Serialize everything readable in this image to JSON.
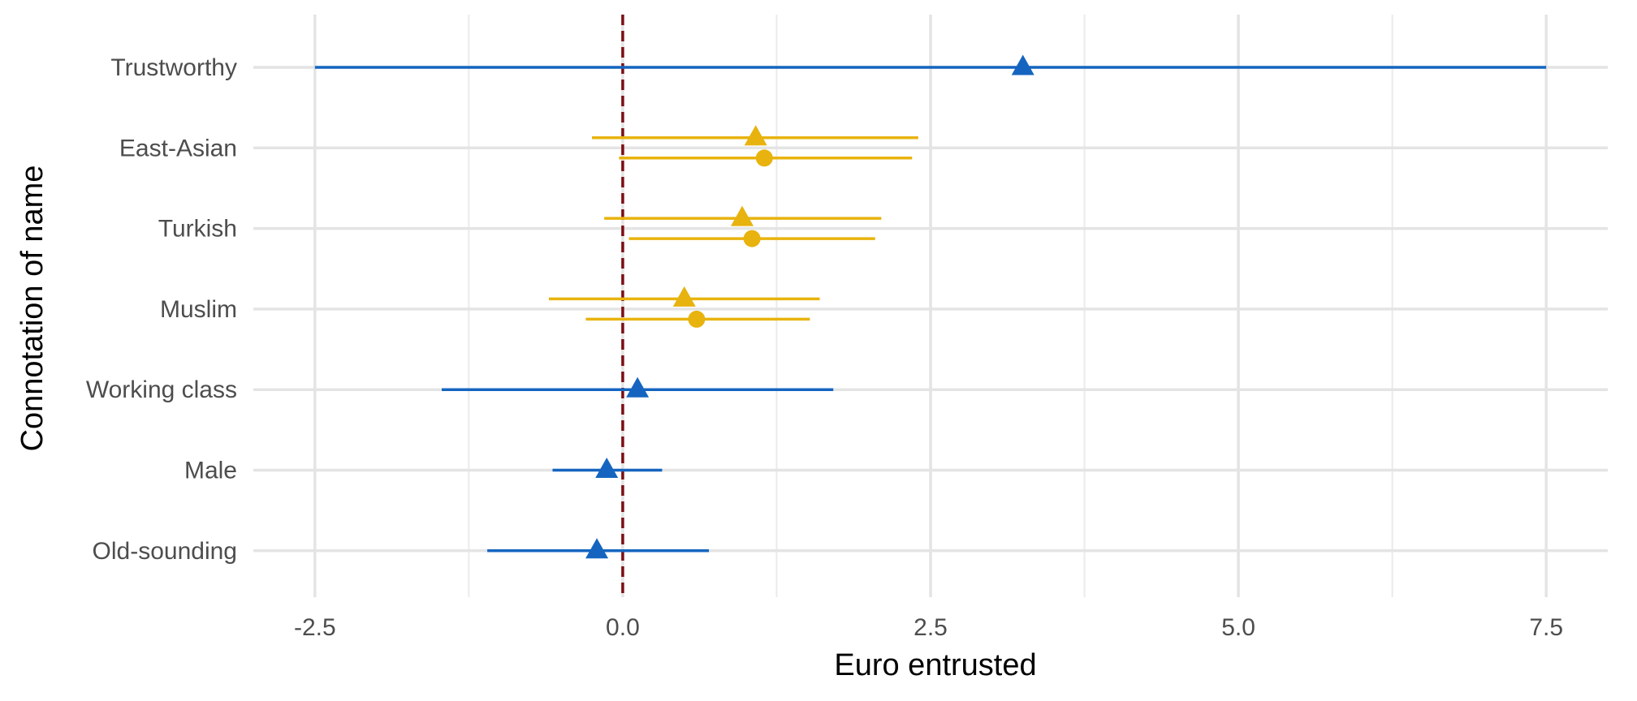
{
  "chart_data": {
    "type": "scatter",
    "subtype": "dot-whisker",
    "title": "",
    "xlabel": "Euro entrusted",
    "ylabel": "Connotation of name",
    "xlim": [
      -3.0,
      8.0
    ],
    "x_ticks": [
      -2.5,
      0.0,
      2.5,
      5.0,
      7.5
    ],
    "x_tick_labels": [
      "-2.5",
      "0.0",
      "2.5",
      "5.0",
      "7.5"
    ],
    "grid": true,
    "legend": "none",
    "reference_line": {
      "x": 0,
      "style": "dashed",
      "color": "#7b0f14"
    },
    "colors": {
      "blue": "#1565c0",
      "gold": "#e8b30e"
    },
    "categories": [
      "Trustworthy",
      "East-Asian",
      "Turkish",
      "Muslim",
      "Working class",
      "Male",
      "Old-sounding"
    ],
    "points": [
      {
        "category": "Trustworthy",
        "shape": "triangle",
        "color": "blue",
        "offset": 0,
        "estimate": 3.25,
        "lower": -2.5,
        "upper": 7.5
      },
      {
        "category": "East-Asian",
        "shape": "triangle",
        "color": "gold",
        "offset": -1,
        "estimate": 1.08,
        "lower": -0.25,
        "upper": 2.4
      },
      {
        "category": "East-Asian",
        "shape": "circle",
        "color": "gold",
        "offset": 1,
        "estimate": 1.15,
        "lower": -0.03,
        "upper": 2.35
      },
      {
        "category": "Turkish",
        "shape": "triangle",
        "color": "gold",
        "offset": -1,
        "estimate": 0.97,
        "lower": -0.15,
        "upper": 2.1
      },
      {
        "category": "Turkish",
        "shape": "circle",
        "color": "gold",
        "offset": 1,
        "estimate": 1.05,
        "lower": 0.05,
        "upper": 2.05
      },
      {
        "category": "Muslim",
        "shape": "triangle",
        "color": "gold",
        "offset": -1,
        "estimate": 0.5,
        "lower": -0.6,
        "upper": 1.6
      },
      {
        "category": "Muslim",
        "shape": "circle",
        "color": "gold",
        "offset": 1,
        "estimate": 0.6,
        "lower": -0.3,
        "upper": 1.52
      },
      {
        "category": "Working class",
        "shape": "triangle",
        "color": "blue",
        "offset": 0,
        "estimate": 0.12,
        "lower": -1.47,
        "upper": 1.71
      },
      {
        "category": "Male",
        "shape": "triangle",
        "color": "blue",
        "offset": 0,
        "estimate": -0.13,
        "lower": -0.57,
        "upper": 0.32
      },
      {
        "category": "Old-sounding",
        "shape": "triangle",
        "color": "blue",
        "offset": 0,
        "estimate": -0.21,
        "lower": -1.1,
        "upper": 0.7
      }
    ]
  }
}
